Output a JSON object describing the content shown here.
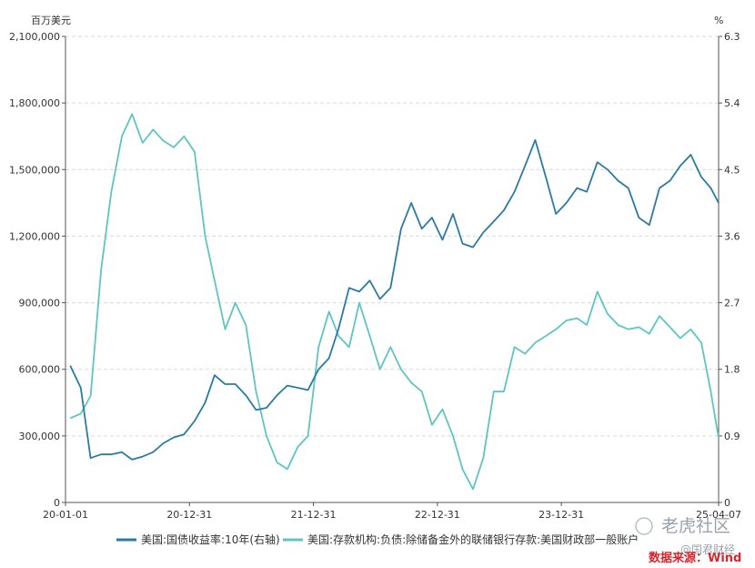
{
  "chart_data": {
    "type": "line",
    "left_unit": "百万美元",
    "right_unit": "%",
    "left_ylim": [
      0,
      2100000
    ],
    "right_ylim": [
      0,
      6.3
    ],
    "left_ticks": [
      "0",
      "300,000",
      "600,000",
      "900,000",
      "1,200,000",
      "1,500,000",
      "1,800,000",
      "2,100,000"
    ],
    "right_ticks": [
      "0",
      "0.9",
      "1.8",
      "2.7",
      "3.6",
      "4.5",
      "5.4",
      "6.3"
    ],
    "x_ticks": [
      "20-01-01",
      "20-12-31",
      "21-12-31",
      "22-12-31",
      "23-12-31",
      "25-04-07"
    ],
    "grid": true,
    "legend_position": "bottom",
    "series": [
      {
        "name": "美国:国债收益率:10年(右轴)",
        "axis": "right",
        "color": "#2a7ba3",
        "x": [
          "2020-01",
          "2020-02",
          "2020-03",
          "2020-04",
          "2020-05",
          "2020-06",
          "2020-07",
          "2020-08",
          "2020-09",
          "2020-10",
          "2020-11",
          "2020-12",
          "2021-01",
          "2021-02",
          "2021-03",
          "2021-04",
          "2021-05",
          "2021-06",
          "2021-07",
          "2021-08",
          "2021-09",
          "2021-10",
          "2021-11",
          "2021-12",
          "2022-01",
          "2022-02",
          "2022-03",
          "2022-04",
          "2022-05",
          "2022-06",
          "2022-07",
          "2022-08",
          "2022-09",
          "2022-10",
          "2022-11",
          "2022-12",
          "2023-01",
          "2023-02",
          "2023-03",
          "2023-04",
          "2023-05",
          "2023-06",
          "2023-07",
          "2023-08",
          "2023-09",
          "2023-10",
          "2023-11",
          "2023-12",
          "2024-01",
          "2024-02",
          "2024-03",
          "2024-04",
          "2024-05",
          "2024-06",
          "2024-07",
          "2024-08",
          "2024-09",
          "2024-10",
          "2024-11",
          "2024-12",
          "2025-01",
          "2025-02",
          "2025-03",
          "2025-04"
        ],
        "values": [
          1.85,
          1.55,
          0.6,
          0.65,
          0.65,
          0.68,
          0.58,
          0.62,
          0.68,
          0.8,
          0.88,
          0.92,
          1.1,
          1.35,
          1.72,
          1.6,
          1.6,
          1.45,
          1.25,
          1.28,
          1.45,
          1.58,
          1.55,
          1.52,
          1.8,
          1.95,
          2.35,
          2.9,
          2.85,
          3.0,
          2.75,
          2.9,
          3.7,
          4.05,
          3.7,
          3.85,
          3.55,
          3.9,
          3.5,
          3.45,
          3.65,
          3.8,
          3.95,
          4.2,
          4.55,
          4.9,
          4.4,
          3.9,
          4.05,
          4.25,
          4.2,
          4.6,
          4.5,
          4.35,
          4.25,
          3.85,
          3.75,
          4.25,
          4.35,
          4.55,
          4.7,
          4.4,
          4.25,
          4.05
        ]
      },
      {
        "name": "美国:存款机构:负债:除储备金外的联储银行存款:美国财政部一般账户",
        "axis": "left",
        "color": "#5ec4c4",
        "x": [
          "2020-01",
          "2020-02",
          "2020-03",
          "2020-04",
          "2020-05",
          "2020-06",
          "2020-07",
          "2020-08",
          "2020-09",
          "2020-10",
          "2020-11",
          "2020-12",
          "2021-01",
          "2021-02",
          "2021-03",
          "2021-04",
          "2021-05",
          "2021-06",
          "2021-07",
          "2021-08",
          "2021-09",
          "2021-10",
          "2021-11",
          "2021-12",
          "2022-01",
          "2022-02",
          "2022-03",
          "2022-04",
          "2022-05",
          "2022-06",
          "2022-07",
          "2022-08",
          "2022-09",
          "2022-10",
          "2022-11",
          "2022-12",
          "2023-01",
          "2023-02",
          "2023-03",
          "2023-04",
          "2023-05",
          "2023-06",
          "2023-07",
          "2023-08",
          "2023-09",
          "2023-10",
          "2023-11",
          "2023-12",
          "2024-01",
          "2024-02",
          "2024-03",
          "2024-04",
          "2024-05",
          "2024-06",
          "2024-07",
          "2024-08",
          "2024-09",
          "2024-10",
          "2024-11",
          "2024-12",
          "2025-01",
          "2025-02",
          "2025-03",
          "2025-04"
        ],
        "values": [
          380000,
          400000,
          480000,
          1050000,
          1400000,
          1650000,
          1750000,
          1620000,
          1680000,
          1630000,
          1600000,
          1650000,
          1580000,
          1200000,
          1000000,
          780000,
          900000,
          800000,
          500000,
          300000,
          180000,
          150000,
          250000,
          300000,
          700000,
          860000,
          750000,
          700000,
          900000,
          750000,
          600000,
          700000,
          600000,
          540000,
          500000,
          350000,
          420000,
          300000,
          150000,
          60000,
          200000,
          500000,
          500000,
          700000,
          670000,
          720000,
          750000,
          780000,
          820000,
          830000,
          800000,
          950000,
          850000,
          800000,
          780000,
          790000,
          760000,
          840000,
          790000,
          740000,
          780000,
          720000,
          500000,
          290000
        ]
      }
    ]
  },
  "source": "数据来源：Wind",
  "watermark_main": "老虎社区",
  "watermark_sub": "@国君财经"
}
